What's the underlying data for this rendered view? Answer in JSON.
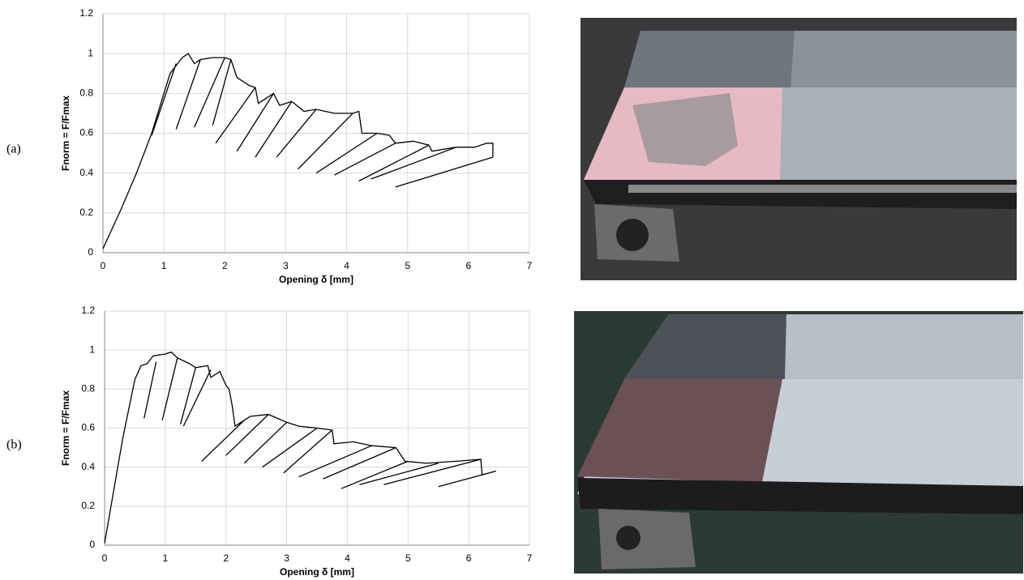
{
  "panel_labels": [
    "(a)",
    "(b)"
  ],
  "chart_data": [
    {
      "type": "line",
      "color": "#000000",
      "grid": true,
      "x_label": "Opening δ [mm]",
      "y_label": "Fnorm = F/Fmax",
      "xlim": [
        0,
        7
      ],
      "ylim": [
        0,
        1.2
      ],
      "xticks": [
        0,
        1,
        2,
        3,
        4,
        5,
        6,
        7
      ],
      "yticks": [
        0,
        0.2,
        0.4,
        0.6,
        0.8,
        1,
        1.2
      ],
      "x": [
        0,
        0.3,
        0.55,
        0.8,
        1.1,
        1.3,
        1.4,
        1.5,
        1.6,
        1.8,
        2.0,
        2.1,
        2.2,
        2.4,
        2.5,
        2.55,
        2.7,
        2.8,
        2.9,
        3.1,
        3.3,
        3.5,
        3.8,
        4.1,
        4.2,
        4.25,
        4.5,
        4.7,
        4.8,
        5.1,
        5.35,
        5.4,
        5.8,
        6.1,
        6.3,
        6.4,
        6.4,
        null,
        1.2,
        0.8,
        null,
        1.6,
        1.2,
        null,
        2.0,
        1.5,
        null,
        2.1,
        1.8,
        null,
        2.5,
        1.85,
        null,
        2.8,
        2.2,
        null,
        3.1,
        2.5,
        null,
        3.5,
        2.85,
        null,
        4.1,
        3.2,
        null,
        4.5,
        3.5,
        null,
        4.8,
        3.8,
        null,
        5.35,
        4.2,
        null,
        5.8,
        4.4,
        null,
        6.4,
        4.8
      ],
      "values": [
        0.02,
        0.22,
        0.4,
        0.6,
        0.9,
        0.98,
        1.0,
        0.95,
        0.97,
        0.98,
        0.98,
        0.97,
        0.88,
        0.84,
        0.83,
        0.75,
        0.78,
        0.8,
        0.74,
        0.76,
        0.71,
        0.72,
        0.7,
        0.7,
        0.71,
        0.6,
        0.6,
        0.59,
        0.55,
        0.56,
        0.54,
        0.51,
        0.53,
        0.53,
        0.55,
        0.55,
        0.48,
        null,
        0.95,
        0.59,
        null,
        0.97,
        0.62,
        null,
        0.98,
        0.63,
        null,
        0.97,
        0.64,
        null,
        0.83,
        0.55,
        null,
        0.8,
        0.51,
        null,
        0.76,
        0.48,
        null,
        0.72,
        0.48,
        null,
        0.7,
        0.42,
        null,
        0.6,
        0.4,
        null,
        0.55,
        0.39,
        null,
        0.54,
        0.36,
        null,
        0.53,
        0.37,
        null,
        0.48,
        0.33
      ]
    },
    {
      "type": "line",
      "color": "#000000",
      "grid": true,
      "x_label": "Opening δ [mm]",
      "y_label": "Fnorm = F/Fmax",
      "xlim": [
        0,
        7
      ],
      "ylim": [
        0,
        1.2
      ],
      "xticks": [
        0,
        1,
        2,
        3,
        4,
        5,
        6,
        7
      ],
      "yticks": [
        0,
        0.2,
        0.4,
        0.6,
        0.8,
        1,
        1.2
      ],
      "x": [
        0,
        0.3,
        0.5,
        0.6,
        0.7,
        0.8,
        1.0,
        1.1,
        1.2,
        1.4,
        1.5,
        1.7,
        1.75,
        1.9,
        2.0,
        2.05,
        2.1,
        2.15,
        2.4,
        2.7,
        3.0,
        3.2,
        3.5,
        3.75,
        3.78,
        4.1,
        4.4,
        4.8,
        4.95,
        5.3,
        5.8,
        6.2,
        6.22,
        6.45,
        null,
        0.85,
        0.65,
        null,
        1.2,
        0.95,
        null,
        1.5,
        1.25,
        null,
        1.75,
        1.3,
        null,
        2.3,
        1.6,
        null,
        2.7,
        2.0,
        null,
        3.0,
        2.3,
        null,
        3.5,
        2.6,
        null,
        3.75,
        2.95,
        null,
        4.4,
        3.2,
        null,
        4.8,
        3.6,
        null,
        5.0,
        3.9,
        null,
        5.5,
        4.2,
        null,
        6.2,
        4.6,
        null,
        6.45,
        5.5
      ],
      "values": [
        0.01,
        0.55,
        0.85,
        0.92,
        0.93,
        0.97,
        0.98,
        0.99,
        0.96,
        0.93,
        0.91,
        0.92,
        0.86,
        0.89,
        0.82,
        0.8,
        0.72,
        0.61,
        0.66,
        0.67,
        0.63,
        0.61,
        0.6,
        0.59,
        0.52,
        0.53,
        0.51,
        0.5,
        0.43,
        0.42,
        0.43,
        0.44,
        0.36,
        0.38,
        null,
        0.94,
        0.65,
        null,
        0.96,
        0.64,
        null,
        0.91,
        0.62,
        null,
        0.9,
        0.61,
        null,
        0.64,
        0.43,
        null,
        0.67,
        0.46,
        null,
        0.63,
        0.42,
        null,
        0.6,
        0.4,
        null,
        0.59,
        0.37,
        null,
        0.51,
        0.35,
        null,
        0.5,
        0.34,
        null,
        0.43,
        0.29,
        null,
        0.42,
        0.31,
        null,
        0.44,
        0.31,
        null,
        0.38,
        0.3
      ]
    }
  ]
}
